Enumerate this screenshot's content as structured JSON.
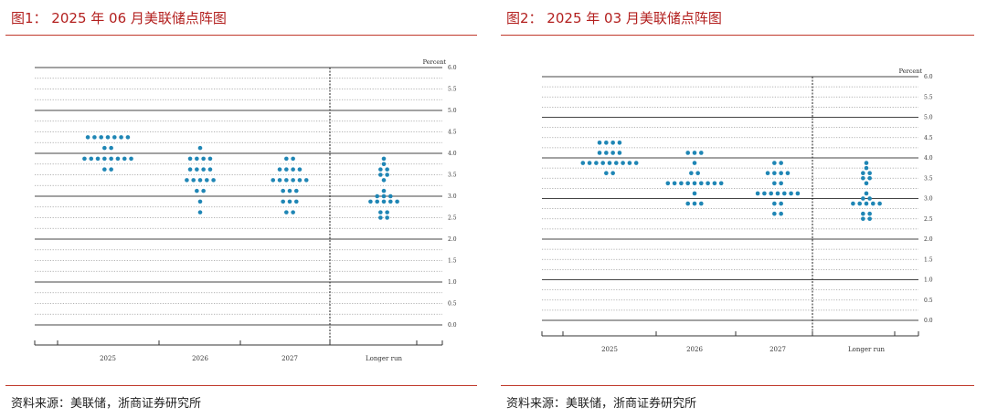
{
  "figures": [
    {
      "title": "图1： 2025 年 06 月美联储点阵图",
      "source": "资料来源：美联储，浙商证券研究所"
    },
    {
      "title": "图2： 2025 年 03 月美联储点阵图",
      "source": "资料来源：美联储，浙商证券研究所"
    }
  ],
  "colors": {
    "dot": "#1f86b5",
    "title": "#b3201f",
    "rule": "#c0392b"
  },
  "chart_data": [
    {
      "type": "scatter",
      "unit_label": "Percent",
      "ylim": [
        0,
        6
      ],
      "yticks": [
        "0.0",
        "0.5",
        "1.0",
        "1.5",
        "2.0",
        "2.5",
        "3.0",
        "3.5",
        "4.0",
        "4.5",
        "5.0",
        "5.5",
        "6.0"
      ],
      "categories": [
        "2025",
        "2026",
        "2027",
        "Longer run"
      ],
      "dots": [
        {
          "category": "2025",
          "rates": [
            4.375,
            4.125,
            3.875,
            3.625
          ],
          "counts": [
            7,
            2,
            8,
            2
          ]
        },
        {
          "category": "2026",
          "rates": [
            4.125,
            3.875,
            3.625,
            3.375,
            3.125,
            2.875,
            2.625
          ],
          "counts": [
            1,
            4,
            4,
            5,
            2,
            1,
            1
          ]
        },
        {
          "category": "2027",
          "rates": [
            3.875,
            3.625,
            3.375,
            3.125,
            2.875,
            2.625
          ],
          "counts": [
            2,
            4,
            6,
            3,
            3,
            2
          ]
        },
        {
          "category": "Longer run",
          "rates": [
            3.875,
            3.75,
            3.625,
            3.5,
            3.375,
            3.125,
            3.0,
            2.875,
            2.625,
            2.5
          ],
          "counts": [
            1,
            1,
            2,
            2,
            1,
            1,
            3,
            5,
            2,
            2
          ]
        }
      ]
    },
    {
      "type": "scatter",
      "unit_label": "Percent",
      "ylim": [
        0,
        6
      ],
      "yticks": [
        "0.0",
        "0.5",
        "1.0",
        "1.5",
        "2.0",
        "2.5",
        "3.0",
        "3.5",
        "4.0",
        "4.5",
        "5.0",
        "5.5",
        "6.0"
      ],
      "categories": [
        "2025",
        "2026",
        "2027",
        "Longer run"
      ],
      "dots": [
        {
          "category": "2025",
          "rates": [
            4.375,
            4.125,
            3.875,
            3.625
          ],
          "counts": [
            4,
            4,
            9,
            2
          ]
        },
        {
          "category": "2026",
          "rates": [
            4.125,
            3.875,
            3.625,
            3.375,
            3.125,
            2.875
          ],
          "counts": [
            3,
            1,
            2,
            9,
            1,
            3
          ]
        },
        {
          "category": "2027",
          "rates": [
            3.875,
            3.625,
            3.375,
            3.125,
            2.875,
            2.625
          ],
          "counts": [
            2,
            4,
            2,
            7,
            2,
            2
          ]
        },
        {
          "category": "Longer run",
          "rates": [
            3.875,
            3.75,
            3.625,
            3.5,
            3.375,
            3.125,
            3.0,
            2.875,
            2.625,
            2.5
          ],
          "counts": [
            1,
            1,
            2,
            2,
            1,
            1,
            2,
            5,
            2,
            2
          ]
        }
      ]
    }
  ]
}
